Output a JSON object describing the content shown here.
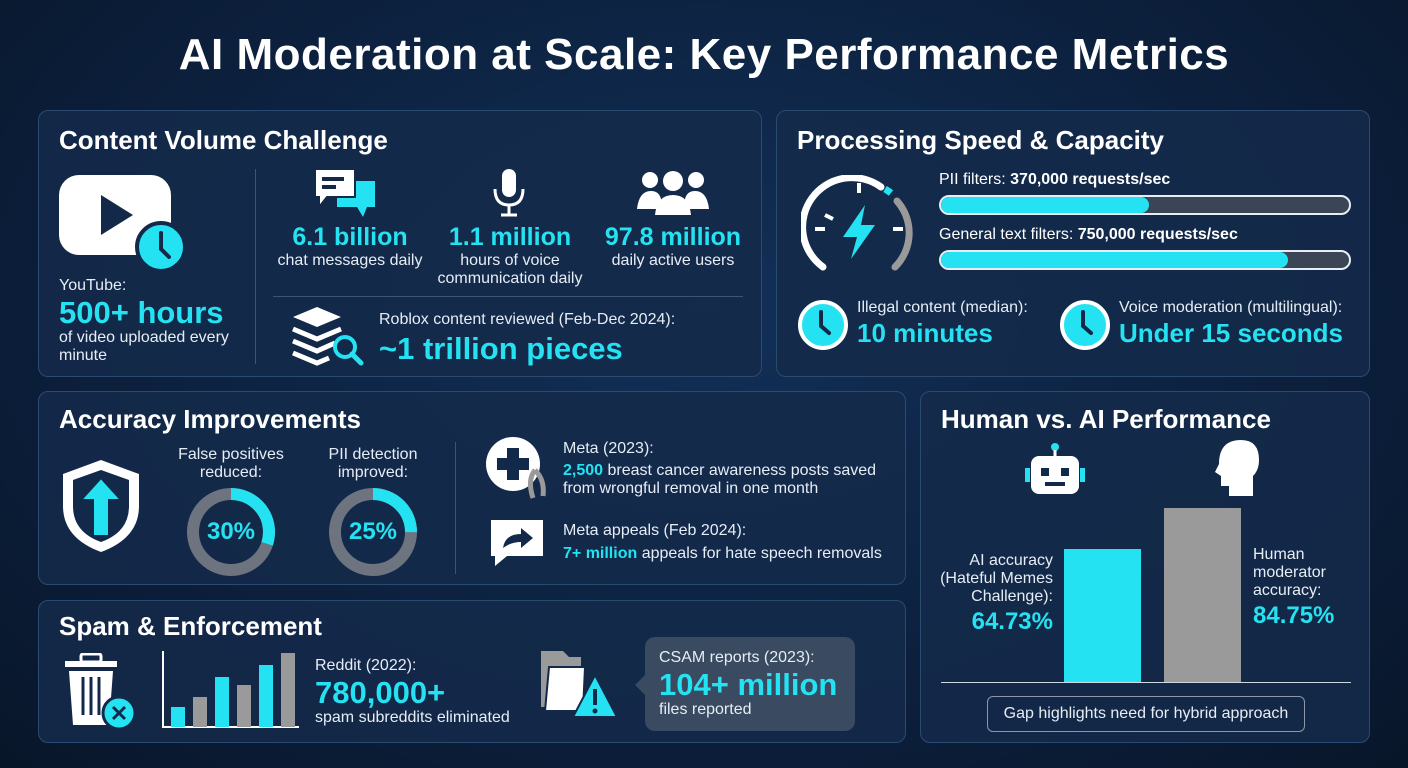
{
  "title": "AI Moderation at Scale: Key Performance Metrics",
  "colors": {
    "accent": "#25e2f2",
    "gray": "#9a9a9a",
    "background": "#0b1d38"
  },
  "content_volume": {
    "heading": "Content Volume Challenge",
    "youtube": {
      "label": "YouTube:",
      "value": "500+ hours",
      "desc": "of video uploaded every minute",
      "icon": "video-play-clock-icon"
    },
    "stats": [
      {
        "value": "6.1 billion",
        "desc": "chat messages daily",
        "icon": "chat-bubbles-icon"
      },
      {
        "value": "1.1 million",
        "desc": "hours of voice communication daily",
        "icon": "microphone-icon"
      },
      {
        "value": "97.8 million",
        "desc": "daily active users",
        "icon": "users-group-icon"
      }
    ],
    "roblox": {
      "label": "Roblox content reviewed (Feb-Dec 2024):",
      "value": "~1 trillion pieces",
      "icon": "layers-search-icon"
    }
  },
  "processing": {
    "heading": "Processing Speed & Capacity",
    "bars": [
      {
        "label": "PII filters:",
        "value": "370,000 requests/sec",
        "fill": 0.51
      },
      {
        "label": "General text filters:",
        "value": "750,000 requests/sec",
        "fill": 0.85
      }
    ],
    "times": [
      {
        "label": "Illegal content (median):",
        "value": "10 minutes"
      },
      {
        "label": "Voice moderation (multilingual):",
        "value": "Under 15 seconds"
      }
    ]
  },
  "accuracy": {
    "heading": "Accuracy Improvements",
    "donuts": [
      {
        "label": "False positives reduced:",
        "value": "30%",
        "percent": 30
      },
      {
        "label": "PII detection improved:",
        "value": "25%",
        "percent": 25
      }
    ],
    "meta": {
      "label": "Meta (2023):",
      "highlight": "2,500",
      "text": " breast cancer awareness posts saved from wrongful removal in one month"
    },
    "appeals": {
      "label": "Meta appeals (Feb 2024):",
      "highlight": "7+ million",
      "text": " appeals for hate speech removals"
    }
  },
  "spam": {
    "heading": "Spam & Enforcement",
    "reddit": {
      "label": "Reddit (2022):",
      "value": "780,000+",
      "desc": "spam subreddits eliminated"
    },
    "csam": {
      "label": "CSAM reports (2023):",
      "value": "104+ million",
      "desc": "files reported"
    }
  },
  "human_ai": {
    "heading": "Human vs. AI Performance",
    "ai": {
      "label": "AI accuracy (Hateful Memes Challenge):",
      "value": "64.73%",
      "number": 64.73
    },
    "human": {
      "label": "Human moderator accuracy:",
      "value": "84.75%",
      "number": 84.75
    },
    "note": "Gap highlights need for hybrid approach"
  }
}
